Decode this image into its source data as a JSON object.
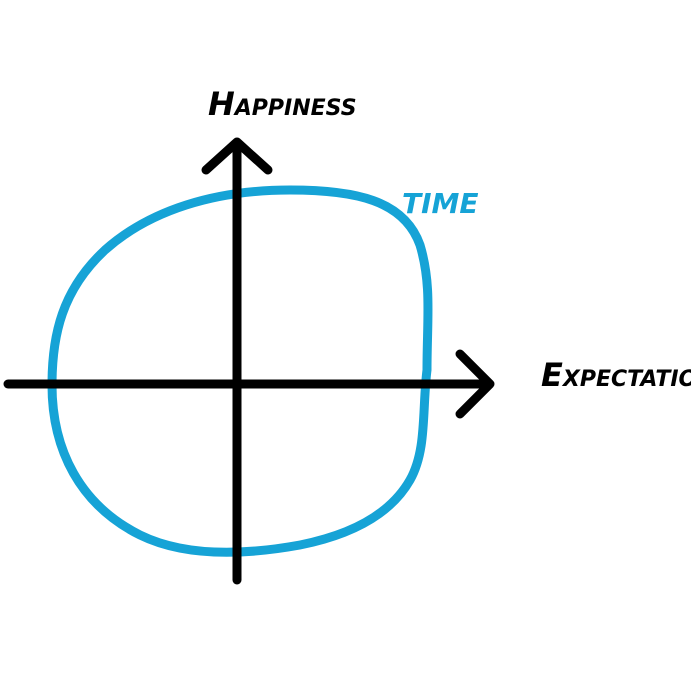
{
  "labels": {
    "y_axis": "Happiness",
    "x_axis": "Expectations",
    "curve": "TIME"
  },
  "colors": {
    "axis": "#000000",
    "curve": "#16a3d6",
    "background": "#ffffff"
  }
}
